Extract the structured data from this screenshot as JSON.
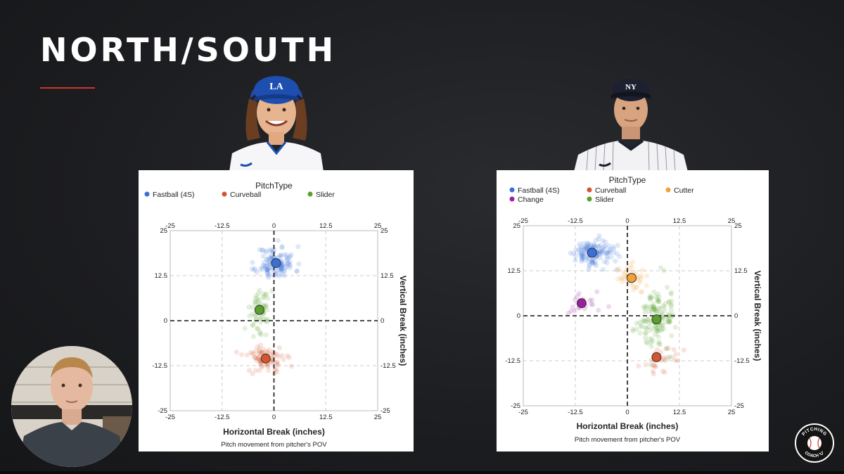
{
  "page": {
    "title": "NORTH/SOUTH"
  },
  "colors": {
    "accent": "#d0342c",
    "Fastball (4S)": "#3a6fd8",
    "Curveball": "#d4552f",
    "Slider": "#5aa02c",
    "Cutter": "#f0a03a",
    "Change": "#9a1fa0"
  },
  "players": [
    {
      "cap_logo": "LA",
      "team": "dodgers"
    },
    {
      "cap_logo": "NY",
      "team": "yankees"
    }
  ],
  "logo": {
    "top_text": "PITCHING",
    "bottom_text": "COACH 'U'"
  },
  "chart_data": [
    {
      "type": "scatter",
      "legend_title": "PitchType",
      "legend_position": "top",
      "xlabel": "Horizontal Break (inches)",
      "ylabel": "Vertical Break (inches)",
      "caption": "Pitch movement from pitcher's POV",
      "xlim": [
        -25,
        25
      ],
      "ylim": [
        -25,
        25
      ],
      "ticks": [
        -25,
        -12.5,
        0,
        12.5,
        25
      ],
      "tick_labels": [
        "-25",
        "-12.5",
        "0",
        "12.5",
        "25"
      ],
      "grid": true,
      "series": [
        {
          "name": "Fastball (4S)",
          "mean": [
            0.5,
            16
          ],
          "spread": [
            2.3,
            2.3
          ],
          "count": 120
        },
        {
          "name": "Curveball",
          "mean": [
            -2,
            -10.5
          ],
          "spread": [
            2.5,
            2
          ],
          "count": 80
        },
        {
          "name": "Slider",
          "mean": [
            -3.5,
            3
          ],
          "spread": [
            1.3,
            3
          ],
          "count": 65
        }
      ]
    },
    {
      "type": "scatter",
      "legend_title": "PitchType",
      "legend_position": "top",
      "xlabel": "Horizontal Break (inches)",
      "ylabel": "Vertical Break (inches)",
      "caption": "Pitch movement from pitcher's POV",
      "xlim": [
        -25,
        25
      ],
      "ylim": [
        -25,
        25
      ],
      "ticks": [
        -25,
        -12.5,
        0,
        12.5,
        25
      ],
      "tick_labels": [
        "-25",
        "-12.5",
        "0",
        "12.5",
        "25"
      ],
      "grid": true,
      "series": [
        {
          "name": "Fastball (4S)",
          "mean": [
            -8.5,
            17.5
          ],
          "spread": [
            2.5,
            1.8
          ],
          "count": 130
        },
        {
          "name": "Curveball",
          "mean": [
            7,
            -11.5
          ],
          "spread": [
            2.5,
            2.3
          ],
          "count": 30
        },
        {
          "name": "Cutter",
          "mean": [
            1,
            10.5
          ],
          "spread": [
            2.2,
            1.8
          ],
          "count": 45
        },
        {
          "name": "Change",
          "mean": [
            -11,
            3.5
          ],
          "spread": [
            2.3,
            1.5
          ],
          "count": 20
        },
        {
          "name": "Slider",
          "mean": [
            7,
            -1
          ],
          "spread": [
            2.1,
            4.2
          ],
          "count": 140
        }
      ]
    }
  ]
}
